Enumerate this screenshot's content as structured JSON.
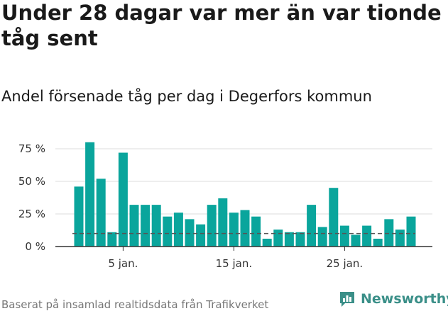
{
  "title": "Under 28 dagar var mer än var tionde tåg sent",
  "subtitle": "Andel försenade tåg per dag i Degerfors kommun",
  "footer": "Baserat på insamlad realtidsdata från Trafikverket",
  "logo": {
    "text": "Newsworthy",
    "icon": "newsworthy-logo-icon"
  },
  "colors": {
    "bar": "#0aa59c",
    "grid": "#dddddd",
    "axis": "#333333",
    "reference_line": "#555555",
    "logo": "#3a8f88"
  },
  "chart_data": {
    "type": "bar",
    "title": "Andel försenade tåg per dag i Degerfors kommun",
    "xlabel": "",
    "ylabel": "",
    "x": [
      1,
      2,
      3,
      4,
      5,
      6,
      7,
      8,
      9,
      10,
      11,
      12,
      13,
      14,
      15,
      16,
      17,
      18,
      19,
      20,
      21,
      22,
      23,
      24,
      25,
      26,
      27,
      28,
      29,
      30,
      31
    ],
    "values": [
      46,
      80,
      52,
      11,
      72,
      32,
      32,
      32,
      23,
      26,
      21,
      17,
      32,
      37,
      26,
      28,
      23,
      6,
      13,
      11,
      11,
      32,
      15,
      45,
      16,
      9,
      16,
      6,
      21,
      13,
      23
    ],
    "unit": "%",
    "reference_line": 10,
    "ylim": [
      0,
      90
    ],
    "yticks": [
      {
        "value": 0,
        "label": "0 %"
      },
      {
        "value": 25,
        "label": "25 %"
      },
      {
        "value": 50,
        "label": "50 %"
      },
      {
        "value": 75,
        "label": "75 %"
      }
    ],
    "xticks": [
      {
        "value": 5,
        "label": "5 jan."
      },
      {
        "value": 15,
        "label": "15 jan."
      },
      {
        "value": 25,
        "label": "25 jan."
      }
    ],
    "grid": true,
    "legend": "none"
  }
}
